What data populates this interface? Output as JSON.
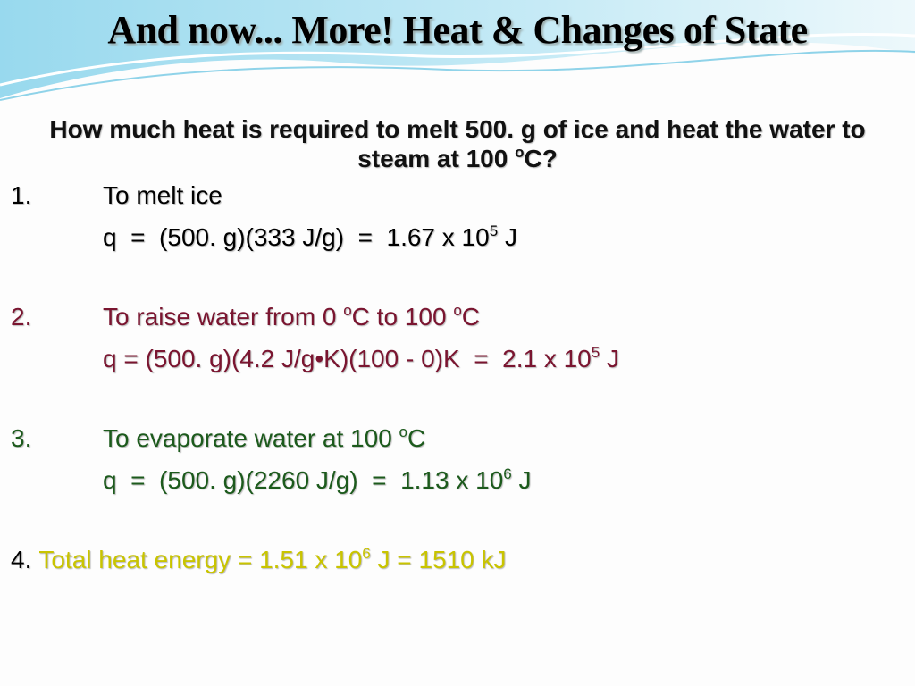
{
  "title": "And now... More! Heat & Changes of State",
  "question": [
    {
      "text": "How much heat is required to melt 500. g of ice and heat the water to steam at 100 "
    },
    {
      "text": "o",
      "sup": true
    },
    {
      "text": "C?"
    }
  ],
  "steps": [
    {
      "number": "1.",
      "color": "#000000",
      "heading": [
        {
          "text": "To melt ice"
        }
      ],
      "equation": [
        {
          "text": "q  =  (500. g)(333 J/g)  =  1.67 x 10"
        },
        {
          "text": "5",
          "sup": true
        },
        {
          "text": " J"
        }
      ]
    },
    {
      "number": "2.",
      "color": "#7a1530",
      "heading": [
        {
          "text": "To raise water from 0 "
        },
        {
          "text": "o",
          "sup": true
        },
        {
          "text": "C to 100 "
        },
        {
          "text": "o",
          "sup": true
        },
        {
          "text": "C"
        }
      ],
      "equation": [
        {
          "text": "q = (500. g)(4.2 J/g•K)(100 - 0)K  =  2.1 x 10"
        },
        {
          "text": "5",
          "sup": true
        },
        {
          "text": " J"
        }
      ]
    },
    {
      "number": "3.",
      "color": "#1c5a1c",
      "heading": [
        {
          "text": "To evaporate water at 100 "
        },
        {
          "text": "o",
          "sup": true
        },
        {
          "text": "C"
        }
      ],
      "equation": [
        {
          "text": "q  =  (500. g)(2260 J/g)  =  1.13 x 10"
        },
        {
          "text": "6",
          "sup": true
        },
        {
          "text": " J"
        }
      ]
    }
  ],
  "total": {
    "number": "4.",
    "color": "#c9c400",
    "text": [
      {
        "text": "Total heat energy = 1.51 x 10"
      },
      {
        "text": "6",
        "sup": true
      },
      {
        "text": " J = 1510 kJ"
      }
    ]
  }
}
